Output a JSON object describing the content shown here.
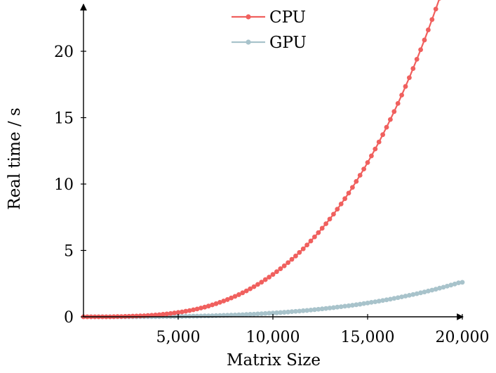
{
  "chart_data": {
    "type": "line",
    "title": "",
    "xlabel": "Matrix Size",
    "ylabel": "Real time / s",
    "xlim": [
      0,
      20000
    ],
    "ylim": [
      0,
      24
    ],
    "xticks": [
      5000,
      10000,
      15000,
      20000
    ],
    "xtick_labels": [
      "5,000",
      "10,000",
      "15,000",
      "20,000"
    ],
    "yticks": [
      0,
      5,
      10,
      15,
      20
    ],
    "ytick_labels": [
      "0",
      "5",
      "10",
      "15",
      "20"
    ],
    "grid": false,
    "legend_position": "top-center",
    "series": [
      {
        "name": "CPU",
        "color": "#f0605e",
        "marker": "circle",
        "points": [
          [
            0,
            0.0
          ],
          [
            200,
            0.0
          ],
          [
            400,
            0.0
          ],
          [
            600,
            0.0
          ],
          [
            800,
            0.0
          ],
          [
            1000,
            0.0
          ],
          [
            1200,
            0.0
          ],
          [
            1400,
            0.0
          ],
          [
            1600,
            0.01
          ],
          [
            1800,
            0.02
          ],
          [
            2000,
            0.02
          ],
          [
            2200,
            0.03
          ],
          [
            2400,
            0.04
          ],
          [
            2600,
            0.05
          ],
          [
            2800,
            0.06
          ],
          [
            3000,
            0.07
          ],
          [
            3200,
            0.08
          ],
          [
            3400,
            0.1
          ],
          [
            3600,
            0.12
          ],
          [
            3800,
            0.14
          ],
          [
            4000,
            0.16
          ],
          [
            4200,
            0.19
          ],
          [
            4400,
            0.22
          ],
          [
            4600,
            0.25
          ],
          [
            4800,
            0.29
          ],
          [
            5000,
            0.33
          ],
          [
            5200,
            0.37
          ],
          [
            5400,
            0.42
          ],
          [
            5600,
            0.47
          ],
          [
            5800,
            0.53
          ],
          [
            6000,
            0.59
          ],
          [
            6200,
            0.66
          ],
          [
            6400,
            0.73
          ],
          [
            6600,
            0.81
          ],
          [
            6800,
            0.9
          ],
          [
            7000,
            0.99
          ],
          [
            7200,
            1.09
          ],
          [
            7400,
            1.19
          ],
          [
            7600,
            1.3
          ],
          [
            7800,
            1.42
          ],
          [
            8000,
            1.54
          ],
          [
            8200,
            1.67
          ],
          [
            8400,
            1.81
          ],
          [
            8600,
            1.95
          ],
          [
            8800,
            2.11
          ],
          [
            9000,
            2.27
          ],
          [
            9200,
            2.44
          ],
          [
            9400,
            2.61
          ],
          [
            9600,
            2.8
          ],
          [
            9800,
            2.99
          ],
          [
            10000,
            3.19
          ],
          [
            10200,
            3.4
          ],
          [
            10400,
            3.62
          ],
          [
            10600,
            3.84
          ],
          [
            10800,
            4.08
          ],
          [
            11000,
            4.33
          ],
          [
            11200,
            4.58
          ],
          [
            11400,
            4.85
          ],
          [
            11600,
            5.12
          ],
          [
            11800,
            5.41
          ],
          [
            12000,
            5.71
          ],
          [
            12200,
            6.02
          ],
          [
            12400,
            6.34
          ],
          [
            12600,
            6.67
          ],
          [
            12800,
            7.01
          ],
          [
            13000,
            7.36
          ],
          [
            13200,
            7.73
          ],
          [
            13400,
            8.11
          ],
          [
            13600,
            8.5
          ],
          [
            13800,
            8.9
          ],
          [
            14000,
            9.32
          ],
          [
            14200,
            9.75
          ],
          [
            14400,
            10.2
          ],
          [
            14600,
            10.66
          ],
          [
            14800,
            11.13
          ],
          [
            15000,
            11.62
          ],
          [
            15200,
            12.12
          ],
          [
            15400,
            12.64
          ],
          [
            15600,
            13.17
          ],
          [
            15800,
            13.72
          ],
          [
            16000,
            14.28
          ],
          [
            16200,
            14.86
          ],
          [
            16400,
            15.46
          ],
          [
            16600,
            16.07
          ],
          [
            16800,
            16.7
          ],
          [
            17000,
            17.35
          ],
          [
            17200,
            18.01
          ],
          [
            17400,
            18.7
          ],
          [
            17600,
            19.4
          ],
          [
            17800,
            20.12
          ],
          [
            18000,
            20.85
          ],
          [
            18200,
            21.61
          ],
          [
            18400,
            22.39
          ],
          [
            18600,
            23.18
          ],
          [
            18800,
            24.0
          ]
        ]
      },
      {
        "name": "GPU",
        "color": "#a8c3cb",
        "marker": "circle",
        "points": [
          [
            0,
            0.0
          ],
          [
            200,
            0.0
          ],
          [
            400,
            0.0
          ],
          [
            600,
            0.0
          ],
          [
            800,
            0.0
          ],
          [
            1000,
            0.0
          ],
          [
            1200,
            0.0
          ],
          [
            1400,
            0.0
          ],
          [
            1600,
            0.0
          ],
          [
            1800,
            0.0
          ],
          [
            2000,
            0.0
          ],
          [
            2200,
            0.0
          ],
          [
            2400,
            0.0
          ],
          [
            2600,
            0.0
          ],
          [
            2800,
            0.0
          ],
          [
            3000,
            0.01
          ],
          [
            3200,
            0.01
          ],
          [
            3400,
            0.01
          ],
          [
            3600,
            0.01
          ],
          [
            3800,
            0.01
          ],
          [
            4000,
            0.01
          ],
          [
            4200,
            0.02
          ],
          [
            4400,
            0.02
          ],
          [
            4600,
            0.02
          ],
          [
            4800,
            0.03
          ],
          [
            5000,
            0.03
          ],
          [
            5200,
            0.03
          ],
          [
            5400,
            0.04
          ],
          [
            5600,
            0.04
          ],
          [
            5800,
            0.05
          ],
          [
            6000,
            0.05
          ],
          [
            6200,
            0.06
          ],
          [
            6400,
            0.07
          ],
          [
            6600,
            0.07
          ],
          [
            6800,
            0.08
          ],
          [
            7000,
            0.09
          ],
          [
            7200,
            0.1
          ],
          [
            7400,
            0.11
          ],
          [
            7600,
            0.12
          ],
          [
            7800,
            0.13
          ],
          [
            8000,
            0.14
          ],
          [
            8200,
            0.15
          ],
          [
            8400,
            0.16
          ],
          [
            8600,
            0.18
          ],
          [
            8800,
            0.19
          ],
          [
            9000,
            0.2
          ],
          [
            9200,
            0.22
          ],
          [
            9400,
            0.23
          ],
          [
            9600,
            0.25
          ],
          [
            9800,
            0.27
          ],
          [
            10000,
            0.28
          ],
          [
            10200,
            0.3
          ],
          [
            10400,
            0.32
          ],
          [
            10600,
            0.34
          ],
          [
            10800,
            0.36
          ],
          [
            11000,
            0.39
          ],
          [
            11200,
            0.41
          ],
          [
            11400,
            0.43
          ],
          [
            11600,
            0.46
          ],
          [
            11800,
            0.48
          ],
          [
            12000,
            0.51
          ],
          [
            12200,
            0.54
          ],
          [
            12400,
            0.57
          ],
          [
            12600,
            0.6
          ],
          [
            12800,
            0.63
          ],
          [
            13000,
            0.66
          ],
          [
            13200,
            0.69
          ],
          [
            13400,
            0.73
          ],
          [
            13600,
            0.76
          ],
          [
            13800,
            0.8
          ],
          [
            14000,
            0.83
          ],
          [
            14200,
            0.87
          ],
          [
            14400,
            0.91
          ],
          [
            14600,
            0.95
          ],
          [
            14800,
            1.0
          ],
          [
            15000,
            1.04
          ],
          [
            15200,
            1.09
          ],
          [
            15400,
            1.13
          ],
          [
            15600,
            1.18
          ],
          [
            15800,
            1.23
          ],
          [
            16000,
            1.28
          ],
          [
            16200,
            1.33
          ],
          [
            16400,
            1.39
          ],
          [
            16600,
            1.44
          ],
          [
            16800,
            1.5
          ],
          [
            17000,
            1.56
          ],
          [
            17200,
            1.62
          ],
          [
            17400,
            1.68
          ],
          [
            17600,
            1.74
          ],
          [
            17800,
            1.81
          ],
          [
            18000,
            1.87
          ],
          [
            18200,
            1.94
          ],
          [
            18400,
            2.01
          ],
          [
            18600,
            2.08
          ],
          [
            18800,
            2.16
          ],
          [
            19000,
            2.23
          ],
          [
            19200,
            2.31
          ],
          [
            19400,
            2.39
          ],
          [
            19600,
            2.47
          ],
          [
            19800,
            2.56
          ],
          [
            20000,
            2.6
          ]
        ]
      }
    ]
  }
}
